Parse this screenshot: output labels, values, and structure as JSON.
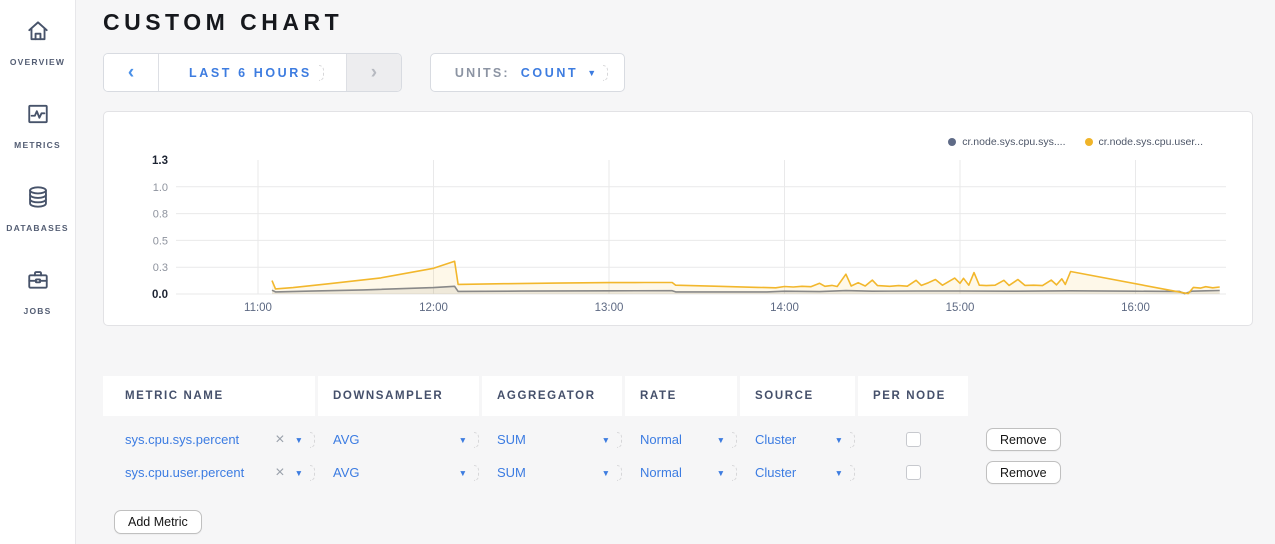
{
  "sidebar": {
    "items": [
      {
        "label": "OVERVIEW"
      },
      {
        "label": "METRICS"
      },
      {
        "label": "DATABASES"
      },
      {
        "label": "JOBS"
      }
    ]
  },
  "header": {
    "title": "CUSTOM CHART"
  },
  "controls": {
    "time_prev": "‹",
    "time_label": "LAST 6 HOURS",
    "time_next": "›",
    "units_label": "UNITS:",
    "units_value": "COUNT",
    "caret": "▼"
  },
  "chart_data": {
    "type": "area",
    "title": "",
    "x_tick_labels": [
      "11:00",
      "12:00",
      "13:00",
      "14:00",
      "15:00",
      "16:00"
    ],
    "x_tick_hours": [
      11,
      12,
      13,
      14,
      15,
      16
    ],
    "y_tick_labels": [
      "0.0",
      "0.3",
      "0.5",
      "0.8",
      "1.0",
      "1.3"
    ],
    "y_tick_values": [
      0,
      0.25,
      0.5,
      0.75,
      1.0,
      1.25
    ],
    "ylim": [
      0,
      1.25
    ],
    "xlim_hours": [
      10.53,
      16.53
    ],
    "grid": true,
    "legend_position": "top-right",
    "legend": [
      {
        "label": "cr.node.sys.cpu.sys....",
        "color": "#5f6b87"
      },
      {
        "label": "cr.node.sys.cpu.user...",
        "color": "#f0b429"
      }
    ],
    "series": [
      {
        "name": "cr.node.sys.cpu.sys.percent",
        "color": "#898989",
        "fill": "rgba(130,130,130,0.13)",
        "points": [
          [
            11.08,
            0.035
          ],
          [
            11.1,
            0.02
          ],
          [
            11.3,
            0.027
          ],
          [
            11.6,
            0.038
          ],
          [
            12.0,
            0.06
          ],
          [
            12.12,
            0.072
          ],
          [
            12.14,
            0.024
          ],
          [
            12.5,
            0.027
          ],
          [
            13.0,
            0.03
          ],
          [
            13.36,
            0.031
          ],
          [
            13.38,
            0.02
          ],
          [
            13.9,
            0.02
          ],
          [
            14.0,
            0.026
          ],
          [
            14.2,
            0.022
          ],
          [
            14.35,
            0.032
          ],
          [
            14.5,
            0.026
          ],
          [
            14.75,
            0.028
          ],
          [
            15.0,
            0.028
          ],
          [
            15.3,
            0.026
          ],
          [
            15.63,
            0.03
          ],
          [
            16.0,
            0.026
          ],
          [
            16.25,
            0.024
          ],
          [
            16.28,
            0.004
          ],
          [
            16.32,
            0.026
          ],
          [
            16.4,
            0.03
          ],
          [
            16.48,
            0.033
          ]
        ]
      },
      {
        "name": "cr.node.sys.cpu.user.percent",
        "color": "#f2b72c",
        "fill": "rgba(242,183,44,0.10)",
        "points": [
          [
            11.08,
            0.125
          ],
          [
            11.1,
            0.048
          ],
          [
            11.2,
            0.06
          ],
          [
            11.4,
            0.095
          ],
          [
            11.7,
            0.15
          ],
          [
            12.0,
            0.24
          ],
          [
            12.12,
            0.305
          ],
          [
            12.14,
            0.09
          ],
          [
            12.4,
            0.096
          ],
          [
            12.7,
            0.102
          ],
          [
            13.0,
            0.106
          ],
          [
            13.2,
            0.107
          ],
          [
            13.36,
            0.107
          ],
          [
            13.38,
            0.082
          ],
          [
            13.6,
            0.073
          ],
          [
            13.85,
            0.062
          ],
          [
            13.95,
            0.058
          ],
          [
            14.0,
            0.07
          ],
          [
            14.05,
            0.065
          ],
          [
            14.1,
            0.072
          ],
          [
            14.15,
            0.068
          ],
          [
            14.2,
            0.1
          ],
          [
            14.23,
            0.072
          ],
          [
            14.27,
            0.08
          ],
          [
            14.3,
            0.07
          ],
          [
            14.35,
            0.185
          ],
          [
            14.38,
            0.075
          ],
          [
            14.42,
            0.105
          ],
          [
            14.46,
            0.075
          ],
          [
            14.5,
            0.13
          ],
          [
            14.53,
            0.078
          ],
          [
            14.6,
            0.072
          ],
          [
            14.65,
            0.078
          ],
          [
            14.7,
            0.073
          ],
          [
            14.75,
            0.128
          ],
          [
            14.78,
            0.08
          ],
          [
            14.82,
            0.105
          ],
          [
            14.86,
            0.135
          ],
          [
            14.9,
            0.082
          ],
          [
            14.97,
            0.148
          ],
          [
            15.0,
            0.1
          ],
          [
            15.02,
            0.146
          ],
          [
            15.05,
            0.082
          ],
          [
            15.08,
            0.2
          ],
          [
            15.11,
            0.082
          ],
          [
            15.15,
            0.078
          ],
          [
            15.2,
            0.082
          ],
          [
            15.25,
            0.128
          ],
          [
            15.28,
            0.08
          ],
          [
            15.33,
            0.135
          ],
          [
            15.37,
            0.08
          ],
          [
            15.42,
            0.082
          ],
          [
            15.47,
            0.078
          ],
          [
            15.52,
            0.13
          ],
          [
            15.55,
            0.085
          ],
          [
            15.58,
            0.142
          ],
          [
            15.6,
            0.09
          ],
          [
            15.63,
            0.21
          ],
          [
            16.27,
            0.012
          ],
          [
            16.3,
            0.004
          ],
          [
            16.33,
            0.062
          ],
          [
            16.37,
            0.055
          ],
          [
            16.4,
            0.068
          ],
          [
            16.44,
            0.058
          ],
          [
            16.48,
            0.065
          ]
        ]
      }
    ]
  },
  "table": {
    "headers": [
      "METRIC NAME",
      "DOWNSAMPLER",
      "AGGREGATOR",
      "RATE",
      "SOURCE",
      "PER NODE"
    ],
    "rows": [
      {
        "metric": "sys.cpu.sys.percent",
        "clear": "×",
        "downsampler": "AVG",
        "aggregator": "SUM",
        "rate": "Normal",
        "source": "Cluster",
        "per_node_checked": false,
        "remove_label": "Remove"
      },
      {
        "metric": "sys.cpu.user.percent",
        "clear": "×",
        "downsampler": "AVG",
        "aggregator": "SUM",
        "rate": "Normal",
        "source": "Cluster",
        "per_node_checked": false,
        "remove_label": "Remove"
      }
    ],
    "add_button": "Add Metric"
  },
  "colors": {
    "accent": "#3d7ce0",
    "series_user": "#f2b72c",
    "series_sys": "#898989"
  }
}
